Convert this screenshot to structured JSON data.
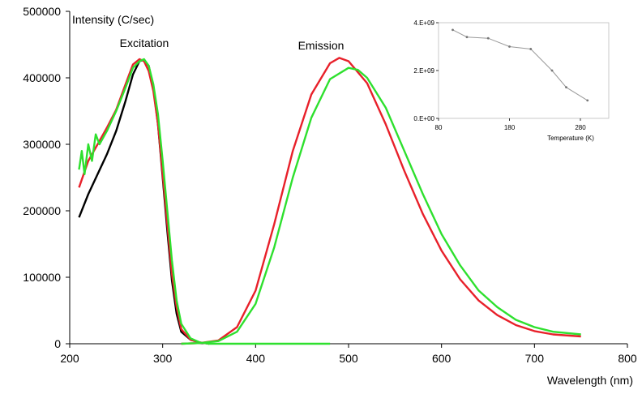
{
  "chart_data": [
    {
      "type": "line",
      "title": "",
      "ylabel": "Intensity (C/sec)",
      "xlabel": "Wavelength (nm)",
      "xlim": [
        200,
        800
      ],
      "ylim": [
        0,
        500000
      ],
      "x_ticks": [
        "200",
        "300",
        "400",
        "500",
        "600",
        "700",
        "800"
      ],
      "y_ticks": [
        "0",
        "100000",
        "200000",
        "300000",
        "400000",
        "500000"
      ],
      "annotations": [
        "Excitation",
        "Emission"
      ],
      "grid": false,
      "colors": {
        "red": "#e8202a",
        "green": "#2ee02e",
        "black": "#000000"
      },
      "excitation_series": [
        {
          "color": "#000000",
          "points": [
            [
              210,
              190000
            ],
            [
              220,
              225000
            ],
            [
              230,
              255000
            ],
            [
              240,
              285000
            ],
            [
              250,
              320000
            ],
            [
              260,
              365000
            ],
            [
              268,
              405000
            ],
            [
              275,
              425000
            ],
            [
              280,
              427000
            ],
            [
              285,
              418000
            ],
            [
              290,
              385000
            ],
            [
              295,
              330000
            ],
            [
              300,
              250000
            ],
            [
              305,
              170000
            ],
            [
              310,
              95000
            ],
            [
              315,
              45000
            ],
            [
              320,
              18000
            ],
            [
              330,
              6000
            ],
            [
              340,
              2000
            ],
            [
              350,
              0
            ]
          ]
        },
        {
          "color": "#e8202a",
          "points": [
            [
              210,
              235000
            ],
            [
              220,
              275000
            ],
            [
              230,
              300000
            ],
            [
              240,
              325000
            ],
            [
              250,
              352000
            ],
            [
              260,
              390000
            ],
            [
              268,
              420000
            ],
            [
              275,
              428000
            ],
            [
              280,
              425000
            ],
            [
              285,
              410000
            ],
            [
              290,
              380000
            ],
            [
              295,
              330000
            ],
            [
              300,
              255000
            ],
            [
              305,
              180000
            ],
            [
              310,
              105000
            ],
            [
              315,
              55000
            ],
            [
              320,
              22000
            ],
            [
              330,
              6000
            ],
            [
              340,
              2000
            ],
            [
              350,
              0
            ]
          ]
        },
        {
          "color": "#2ee02e",
          "points": [
            [
              210,
              262000
            ],
            [
              213,
              290000
            ],
            [
              216,
              255000
            ],
            [
              220,
              300000
            ],
            [
              224,
              275000
            ],
            [
              228,
              315000
            ],
            [
              232,
              300000
            ],
            [
              240,
              320000
            ],
            [
              250,
              350000
            ],
            [
              260,
              385000
            ],
            [
              268,
              415000
            ],
            [
              275,
              425000
            ],
            [
              280,
              428000
            ],
            [
              285,
              418000
            ],
            [
              290,
              390000
            ],
            [
              295,
              345000
            ],
            [
              300,
              275000
            ],
            [
              305,
              200000
            ],
            [
              310,
              125000
            ],
            [
              315,
              65000
            ],
            [
              320,
              30000
            ],
            [
              330,
              8000
            ],
            [
              340,
              2000
            ],
            [
              350,
              0
            ],
            [
              400,
              0
            ],
            [
              480,
              0
            ]
          ]
        }
      ],
      "emission_series": [
        {
          "color": "#e8202a",
          "points": [
            [
              320,
              0
            ],
            [
              340,
              1000
            ],
            [
              360,
              5000
            ],
            [
              380,
              25000
            ],
            [
              400,
              80000
            ],
            [
              420,
              180000
            ],
            [
              440,
              290000
            ],
            [
              460,
              375000
            ],
            [
              480,
              422000
            ],
            [
              490,
              430000
            ],
            [
              500,
              425000
            ],
            [
              520,
              392000
            ],
            [
              540,
              330000
            ],
            [
              560,
              260000
            ],
            [
              580,
              195000
            ],
            [
              600,
              140000
            ],
            [
              620,
              97000
            ],
            [
              640,
              65000
            ],
            [
              660,
              43000
            ],
            [
              680,
              28000
            ],
            [
              700,
              19000
            ],
            [
              720,
              14000
            ],
            [
              750,
              11000
            ]
          ]
        },
        {
          "color": "#2ee02e",
          "points": [
            [
              320,
              0
            ],
            [
              340,
              1000
            ],
            [
              360,
              4000
            ],
            [
              380,
              18000
            ],
            [
              400,
              60000
            ],
            [
              420,
              145000
            ],
            [
              440,
              250000
            ],
            [
              460,
              340000
            ],
            [
              480,
              398000
            ],
            [
              500,
              415000
            ],
            [
              510,
              412000
            ],
            [
              520,
              400000
            ],
            [
              540,
              355000
            ],
            [
              560,
              290000
            ],
            [
              580,
              225000
            ],
            [
              600,
              165000
            ],
            [
              620,
              118000
            ],
            [
              640,
              80000
            ],
            [
              660,
              55000
            ],
            [
              680,
              36000
            ],
            [
              700,
              25000
            ],
            [
              720,
              18000
            ],
            [
              750,
              14000
            ]
          ]
        }
      ]
    },
    {
      "type": "line",
      "title": "",
      "xlabel": "Temperature (K)",
      "ylabel": "",
      "xlim": [
        80,
        320
      ],
      "ylim": [
        0,
        4000000000
      ],
      "x_ticks": [
        "80",
        "180",
        "280"
      ],
      "y_ticks": [
        "0.E+00",
        "2.E+09",
        "4.E+09"
      ],
      "grid": false,
      "color": "#999999",
      "points": [
        [
          100,
          3700000000
        ],
        [
          120,
          3400000000
        ],
        [
          150,
          3350000000
        ],
        [
          180,
          3000000000
        ],
        [
          210,
          2900000000
        ],
        [
          240,
          2000000000
        ],
        [
          260,
          1300000000
        ],
        [
          290,
          750000000
        ]
      ]
    }
  ]
}
